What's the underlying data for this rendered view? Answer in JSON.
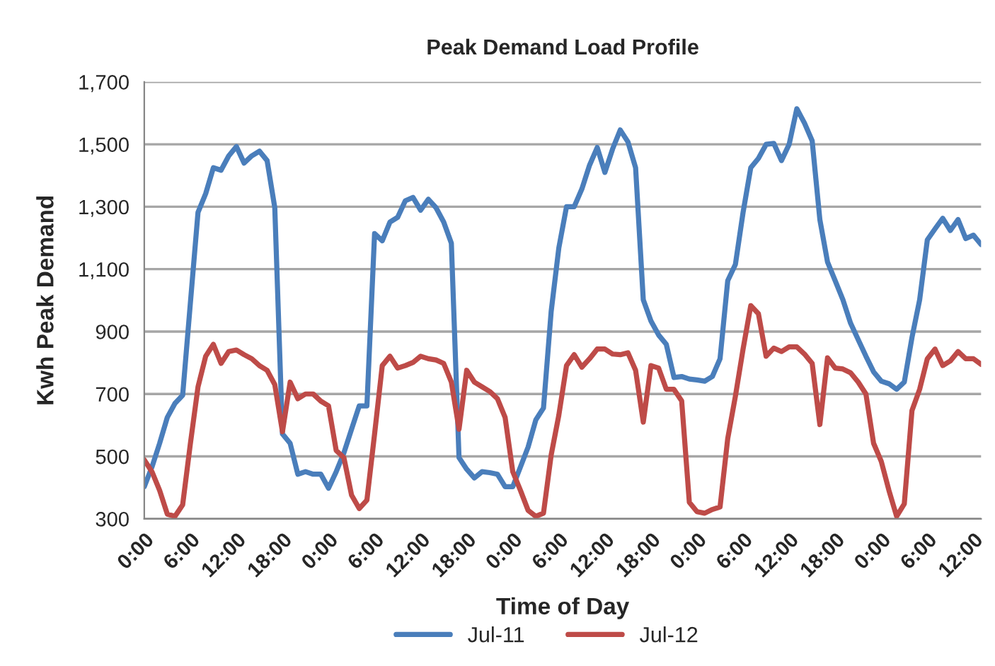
{
  "chart_data": {
    "type": "line",
    "title": "Peak Demand Load Profile",
    "xlabel": "Time of Day",
    "ylabel": "Kwh Peak Demand",
    "categories": [
      "0:00",
      null,
      null,
      null,
      null,
      null,
      "6:00",
      null,
      null,
      null,
      null,
      null,
      "12:00",
      null,
      null,
      null,
      null,
      null,
      "18:00",
      null,
      null,
      null,
      null,
      null,
      "0:00",
      null,
      null,
      null,
      null,
      null,
      "6:00",
      null,
      null,
      null,
      null,
      null,
      "12:00",
      null,
      null,
      null,
      null,
      null,
      "18:00",
      null,
      null,
      null,
      null,
      null,
      "0:00",
      null,
      null,
      null,
      null,
      null,
      "6:00",
      null,
      null,
      null,
      null,
      null,
      "12:00",
      null,
      null,
      null,
      null,
      null,
      "18:00",
      null,
      null,
      null,
      null,
      null,
      "0:00",
      null,
      null,
      null,
      null,
      null,
      "6:00",
      null,
      null,
      null,
      null,
      null,
      "12:00",
      null,
      null,
      null,
      null,
      null,
      "18:00",
      null,
      null,
      null,
      null,
      null,
      "0:00",
      null,
      null,
      null,
      null,
      null,
      "6:00",
      null,
      null,
      null,
      null,
      null,
      "12:00",
      null
    ],
    "ylim": [
      300,
      1700
    ],
    "yticks": [
      {
        "value": 300,
        "label": "300"
      },
      {
        "value": 500,
        "label": "500"
      },
      {
        "value": 700,
        "label": "700"
      },
      {
        "value": 900,
        "label": "900"
      },
      {
        "value": 1100,
        "label": "1,100"
      },
      {
        "value": 1300,
        "label": "1,300"
      },
      {
        "value": 1500,
        "label": "1,500"
      },
      {
        "value": 1700,
        "label": "1,700"
      }
    ],
    "grid": "y",
    "legend": "bottom",
    "marker": "none",
    "line_style": "solid",
    "series": [
      {
        "name": "Jul-11",
        "color": "#4a7ebb",
        "values": [
          403,
          466,
          542,
          625,
          670,
          696,
          990,
          1282,
          1342,
          1425,
          1417,
          1463,
          1493,
          1440,
          1463,
          1478,
          1448,
          1297,
          572,
          542,
          443,
          451,
          443,
          443,
          398,
          451,
          511,
          587,
          662,
          662,
          1214,
          1191,
          1251,
          1266,
          1319,
          1330,
          1289,
          1324,
          1297,
          1251,
          1183,
          496,
          459,
          431,
          451,
          448,
          443,
          403,
          403,
          466,
          530,
          617,
          655,
          964,
          1168,
          1300,
          1300,
          1357,
          1433,
          1490,
          1410,
          1485,
          1546,
          1508,
          1425,
          1002,
          934,
          889,
          859,
          753,
          756,
          748,
          745,
          741,
          756,
          813,
          1063,
          1115,
          1282,
          1425,
          1455,
          1500,
          1503,
          1448,
          1500,
          1614,
          1568,
          1511,
          1259,
          1123,
          1063,
          1002,
          927,
          874,
          821,
          771,
          741,
          733,
          715,
          738,
          881,
          1002,
          1194,
          1229,
          1263,
          1224,
          1259,
          1198,
          1209,
          1179
        ]
      },
      {
        "name": "Jul-12",
        "color": "#be4b48",
        "values": [
          489,
          451,
          391,
          315,
          308,
          345,
          540,
          723,
          821,
          859,
          798,
          836,
          841,
          826,
          813,
          791,
          776,
          730,
          579,
          738,
          685,
          700,
          700,
          677,
          662,
          519,
          496,
          376,
          333,
          360,
          572,
          791,
          821,
          783,
          791,
          801,
          821,
          813,
          809,
          798,
          738,
          587,
          776,
          738,
          723,
          708,
          685,
          625,
          451,
          391,
          327,
          308,
          318,
          504,
          632,
          791,
          826,
          786,
          813,
          844,
          844,
          828,
          826,
          832,
          776,
          610,
          791,
          783,
          715,
          715,
          678,
          353,
          323,
          318,
          330,
          338,
          557,
          693,
          844,
          983,
          957,
          821,
          847,
          836,
          851,
          851,
          828,
          798,
          602,
          816,
          783,
          780,
          768,
          738,
          700,
          542,
          484,
          391,
          308,
          348,
          647,
          715,
          813,
          844,
          791,
          806,
          836,
          813,
          813,
          795
        ]
      }
    ]
  }
}
